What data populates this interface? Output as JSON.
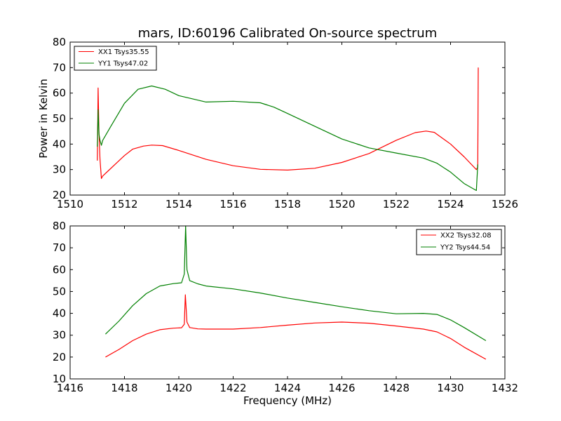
{
  "chart_data": [
    {
      "type": "line",
      "title": "mars, ID:60196 Calibrated On-source spectrum",
      "xlabel": "",
      "ylabel": "Power in Kelvin",
      "xlim": [
        1510,
        1526
      ],
      "ylim": [
        20,
        80
      ],
      "xticks": [
        1510,
        1512,
        1514,
        1516,
        1518,
        1520,
        1522,
        1524,
        1526
      ],
      "yticks": [
        20,
        30,
        40,
        50,
        60,
        70,
        80
      ],
      "grid": false,
      "legend_position": "top-left",
      "series": [
        {
          "name": "XX1 Tsys35.55",
          "color": "#ff0000",
          "x": [
            1511.0,
            1511.03,
            1511.06,
            1511.1,
            1511.15,
            1511.2,
            1511.4,
            1511.7,
            1512.0,
            1512.3,
            1512.7,
            1513.0,
            1513.4,
            1514.0,
            1515.0,
            1516.0,
            1517.0,
            1518.0,
            1519.0,
            1520.0,
            1521.0,
            1522.0,
            1522.7,
            1523.1,
            1523.4,
            1524.0,
            1524.5,
            1524.95,
            1525.0,
            1525.02
          ],
          "y": [
            33.5,
            62.0,
            45.0,
            34.0,
            26.5,
            27.5,
            29.5,
            32.5,
            35.5,
            38.0,
            39.2,
            39.6,
            39.4,
            37.5,
            34.0,
            31.5,
            30.1,
            29.8,
            30.5,
            32.8,
            36.3,
            41.5,
            44.5,
            45.1,
            44.6,
            40.0,
            35.0,
            30.0,
            31.0,
            70.0
          ]
        },
        {
          "name": "YY1 Tsys47.02",
          "color": "#008000",
          "x": [
            1511.0,
            1511.03,
            1511.06,
            1511.1,
            1511.15,
            1511.2,
            1511.5,
            1512.0,
            1512.5,
            1513.0,
            1513.5,
            1514.0,
            1515.0,
            1516.0,
            1517.0,
            1517.5,
            1518.0,
            1519.0,
            1520.0,
            1521.0,
            1522.0,
            1523.0,
            1523.5,
            1524.0,
            1524.5,
            1524.95,
            1525.0
          ],
          "y": [
            39.0,
            53.5,
            44.0,
            41.5,
            39.5,
            41.5,
            47.0,
            56.0,
            61.5,
            62.8,
            61.5,
            59.0,
            56.5,
            56.8,
            56.2,
            54.5,
            52.0,
            47.0,
            42.0,
            38.5,
            36.5,
            34.5,
            32.5,
            29.0,
            24.5,
            21.8,
            32.0
          ]
        }
      ]
    },
    {
      "type": "line",
      "title": "",
      "xlabel": "Frequency (MHz)",
      "ylabel": "",
      "xlim": [
        1416,
        1432
      ],
      "ylim": [
        10,
        80
      ],
      "xticks": [
        1416,
        1418,
        1420,
        1422,
        1424,
        1426,
        1428,
        1430,
        1432
      ],
      "yticks": [
        10,
        20,
        30,
        40,
        50,
        60,
        70,
        80
      ],
      "grid": false,
      "legend_position": "top-right",
      "series": [
        {
          "name": "XX2 Tsys32.08",
          "color": "#ff0000",
          "x": [
            1417.3,
            1417.8,
            1418.3,
            1418.8,
            1419.3,
            1419.8,
            1420.1,
            1420.2,
            1420.24,
            1420.3,
            1420.4,
            1420.7,
            1421.0,
            1422.0,
            1423.0,
            1424.0,
            1425.0,
            1426.0,
            1427.0,
            1428.0,
            1429.0,
            1429.5,
            1430.0,
            1430.5,
            1431.3
          ],
          "y": [
            20.0,
            23.5,
            27.5,
            30.5,
            32.5,
            33.2,
            33.4,
            35.0,
            48.5,
            36.0,
            33.5,
            32.9,
            32.8,
            32.8,
            33.5,
            34.6,
            35.6,
            36.0,
            35.5,
            34.2,
            32.8,
            31.5,
            28.5,
            24.5,
            19.0
          ]
        },
        {
          "name": "YY2 Tsys44.54",
          "color": "#008000",
          "x": [
            1417.3,
            1417.8,
            1418.3,
            1418.8,
            1419.3,
            1419.8,
            1420.1,
            1420.2,
            1420.25,
            1420.3,
            1420.4,
            1420.7,
            1421.0,
            1422.0,
            1423.0,
            1424.0,
            1425.0,
            1426.0,
            1427.0,
            1428.0,
            1429.0,
            1429.5,
            1430.0,
            1430.5,
            1431.3
          ],
          "y": [
            30.5,
            36.5,
            43.5,
            49.0,
            52.5,
            53.6,
            54.0,
            58.0,
            80.0,
            60.0,
            55.0,
            53.5,
            52.5,
            51.2,
            49.3,
            47.0,
            45.0,
            43.0,
            41.2,
            39.8,
            40.0,
            39.5,
            37.0,
            33.5,
            27.5
          ]
        }
      ]
    }
  ]
}
